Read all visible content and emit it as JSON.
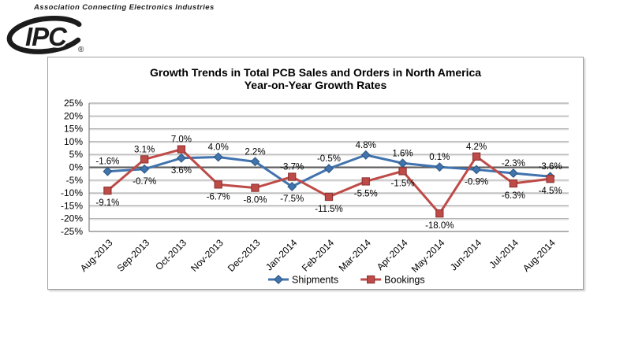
{
  "header": {
    "association_text": "Association Connecting Electronics Industries",
    "logo_text": "IPC",
    "registered_mark": "®"
  },
  "chart": {
    "title_line1": "Growth Trends in Total PCB Sales and Orders in North America",
    "title_line2": "Year-on-Year Growth Rates"
  },
  "chart_data": {
    "type": "line",
    "title": "Growth Trends in Total PCB Sales and Orders in North America",
    "subtitle": "Year-on-Year Growth Rates",
    "categories": [
      "Aug-2013",
      "Sep-2013",
      "Oct-2013",
      "Nov-2013",
      "Dec-2013",
      "Jan-2014",
      "Feb-2014",
      "Mar-2014",
      "Apr-2014",
      "May-2014",
      "Jun-2014",
      "Jul-2014",
      "Aug-2014"
    ],
    "series": [
      {
        "name": "Shipments",
        "color": "#4173AE",
        "marker_border": "#2E5984",
        "marker": "diamond",
        "values": [
          -1.6,
          -0.7,
          3.6,
          4.0,
          2.2,
          -7.5,
          -0.5,
          4.8,
          1.6,
          0.1,
          -0.9,
          -2.3,
          -3.6
        ]
      },
      {
        "name": "Bookings",
        "color": "#BE4B48",
        "marker_border": "#8E3432",
        "marker": "square",
        "values": [
          -9.1,
          3.1,
          7.0,
          -6.7,
          -8.0,
          -3.7,
          -11.5,
          -5.5,
          -1.5,
          -18.0,
          4.2,
          -6.3,
          -4.5
        ]
      }
    ],
    "ylim": [
      -25,
      25
    ],
    "ytick_step": 5,
    "ytick_labels": [
      "25%",
      "20%",
      "15%",
      "10%",
      "5%",
      "0%",
      "-5%",
      "-10%",
      "-15%",
      "-20%",
      "-25%"
    ],
    "data_label_suffix": "%",
    "grid": true,
    "legend_position": "bottom",
    "data_labels": true,
    "colors": {
      "gridline": "#A9A9A9",
      "gridline_shadow": "#E7E7E7",
      "zero_line": "#595959",
      "axis_line": "#808080",
      "label_text": "#000000"
    }
  }
}
